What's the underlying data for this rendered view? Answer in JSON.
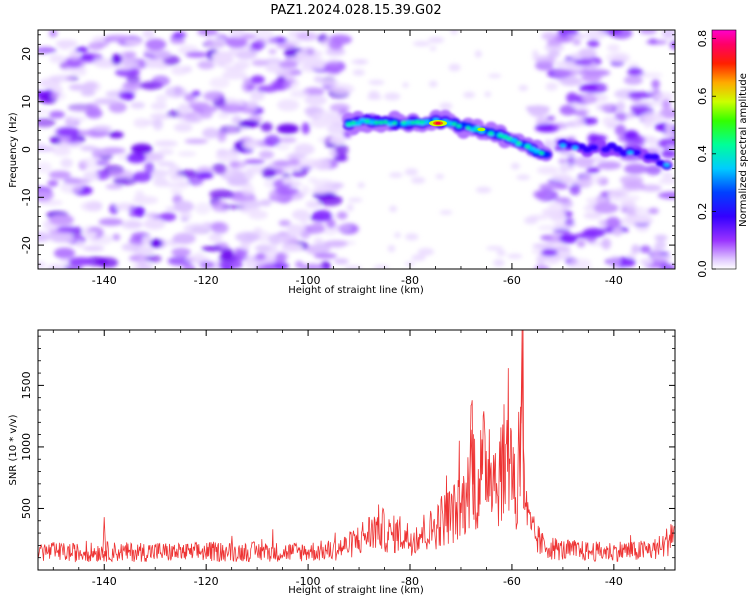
{
  "figure": {
    "title": "PAZ1.2024.028.15.39.G02"
  },
  "chart_data": [
    {
      "type": "heatmap",
      "xlabel": "Height of straight line (km)",
      "ylabel": "Frequency (Hz)",
      "xlim": [
        -153,
        -28
      ],
      "ylim": [
        -25,
        25
      ],
      "xticks": [
        -140,
        -120,
        -100,
        -80,
        -60,
        -40
      ],
      "yticks": [
        -20,
        -10,
        0,
        10,
        20
      ],
      "colorbar": {
        "label": "Normalized spectral amplitude",
        "range": [
          0.0,
          0.83
        ],
        "ticks": [
          0.0,
          0.2,
          0.4,
          0.6,
          0.8
        ],
        "colors": [
          "#ffffff",
          "#cc99ff",
          "#8000ff",
          "#0000ff",
          "#00ffff",
          "#00ff00",
          "#ffff00",
          "#ff8000",
          "#ff0000",
          "#ff00ff"
        ]
      },
      "signal_ridge": {
        "x": [
          -92,
          -88,
          -84,
          -80,
          -76,
          -72,
          -68,
          -64,
          -60,
          -56,
          -53
        ],
        "y": [
          5.5,
          6.0,
          5.5,
          5.5,
          6.0,
          5.5,
          4.5,
          3.5,
          2.0,
          0.0,
          -1.5
        ],
        "peak_amplitude": 0.83,
        "peak_x": -74.5,
        "peak_y": 5.5
      },
      "tail_ridge": {
        "x": [
          -50,
          -45,
          -40,
          -36,
          -32,
          -29
        ],
        "y": [
          1.0,
          0.0,
          0.5,
          -1.0,
          -2.0,
          -3.5
        ]
      },
      "noise_regions": [
        {
          "x_range": [
            -153,
            -92
          ],
          "y_range": [
            -25,
            25
          ],
          "amplitude": 0.25
        },
        {
          "x_range": [
            -55,
            -28
          ],
          "y_range": [
            -25,
            25
          ],
          "amplitude": 0.2
        }
      ]
    },
    {
      "type": "line",
      "xlabel": "Height of straight line (km)",
      "ylabel": "SNR (10 * v/v)",
      "xlim": [
        -153,
        -28
      ],
      "ylim": [
        0,
        1950
      ],
      "xticks": [
        -140,
        -120,
        -100,
        -80,
        -60,
        -40
      ],
      "yticks": [
        500,
        1000,
        1500
      ],
      "color": "#ee3333",
      "series": [
        {
          "x": [
            -153,
            -145,
            -140,
            -135,
            -130,
            -125,
            -120,
            -115,
            -110,
            -105,
            -100,
            -95,
            -92,
            -88,
            -86,
            -84,
            -82,
            -80,
            -78,
            -76,
            -74,
            -72,
            -70,
            -68.5,
            -68,
            -67,
            -66,
            -65,
            -64,
            -63,
            -62,
            -61,
            -60,
            -59,
            -58.5,
            -58,
            -57.5,
            -57,
            -56,
            -55,
            -54,
            -52,
            -50,
            -48,
            -45,
            -42,
            -40,
            -38,
            -36,
            -34,
            -32,
            -30,
            -28
          ],
          "y": [
            150,
            140,
            150,
            145,
            150,
            140,
            150,
            145,
            150,
            145,
            150,
            160,
            200,
            300,
            350,
            280,
            300,
            250,
            300,
            320,
            400,
            450,
            500,
            650,
            1150,
            600,
            800,
            900,
            950,
            700,
            850,
            900,
            950,
            400,
            1300,
            1950,
            700,
            400,
            300,
            250,
            200,
            180,
            160,
            160,
            150,
            150,
            150,
            160,
            150,
            160,
            170,
            200,
            350
          ]
        }
      ]
    }
  ]
}
